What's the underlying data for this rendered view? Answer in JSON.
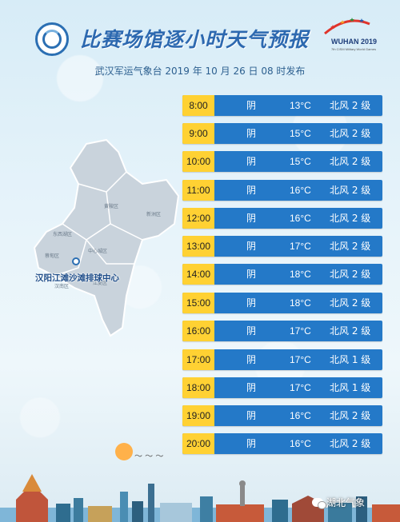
{
  "header": {
    "title": "比赛场馆逐小时天气预报",
    "issuer": "武汉军运气象台  2019 年 10 月 26 日    08 时发布",
    "event_logo_text": "WUHAN 2019",
    "event_logo_sub": "7th CISM Military World Games"
  },
  "map": {
    "venue_label": "汉阳江滩沙滩排球中心",
    "districts": [
      "黄陂区",
      "新洲区",
      "东西湖区",
      "蔡甸区",
      "汉南区",
      "中心城区",
      "江夏区"
    ]
  },
  "forecast": [
    {
      "time": "8:00",
      "weather": "阴",
      "temp": "13°C",
      "wind": "北风 2 级"
    },
    {
      "time": "9:00",
      "weather": "阴",
      "temp": "15°C",
      "wind": "北风 2 级"
    },
    {
      "time": "10:00",
      "weather": "阴",
      "temp": "15°C",
      "wind": "北风 2 级"
    },
    {
      "time": "11:00",
      "weather": "阴",
      "temp": "16°C",
      "wind": "北风 2 级"
    },
    {
      "time": "12:00",
      "weather": "阴",
      "temp": "16°C",
      "wind": "北风 2 级"
    },
    {
      "time": "13:00",
      "weather": "阴",
      "temp": "17°C",
      "wind": "北风 2 级"
    },
    {
      "time": "14:00",
      "weather": "阴",
      "temp": "18°C",
      "wind": "北风 2 级"
    },
    {
      "time": "15:00",
      "weather": "阴",
      "temp": "18°C",
      "wind": "北风 2 级"
    },
    {
      "time": "16:00",
      "weather": "阴",
      "temp": "17°C",
      "wind": "北风 2 级"
    },
    {
      "time": "17:00",
      "weather": "阴",
      "temp": "17°C",
      "wind": "北风 1 级"
    },
    {
      "time": "18:00",
      "weather": "阴",
      "temp": "17°C",
      "wind": "北风 1 级"
    },
    {
      "time": "19:00",
      "weather": "阴",
      "temp": "16°C",
      "wind": "北风 2 级"
    },
    {
      "time": "20:00",
      "weather": "阴",
      "temp": "16°C",
      "wind": "北风 2 级"
    }
  ],
  "footer": {
    "watermark": "湖北气象"
  },
  "colors": {
    "row_bg": "#2479c8",
    "time_bg": "#ffd133",
    "title": "#2d69b0"
  }
}
